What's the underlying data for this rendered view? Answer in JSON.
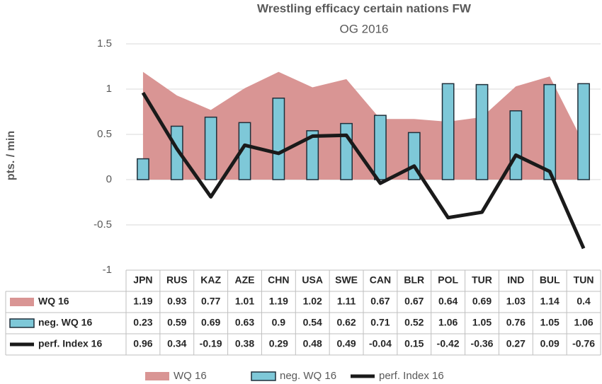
{
  "chart_data": {
    "type": "combo",
    "title": "Wrestling efficacy certain nations  FW",
    "subtitle": "OG 2016",
    "y_label": "pts. / min",
    "categories": [
      "JPN",
      "RUS",
      "KAZ",
      "AZE",
      "CHN",
      "USA",
      "SWE",
      "CAN",
      "BLR",
      "POL",
      "TUR",
      "IND",
      "BUL",
      "TUN"
    ],
    "series": [
      {
        "name": "WQ 16",
        "type": "area",
        "color": "#d99594",
        "values": [
          1.19,
          0.93,
          0.77,
          1.01,
          1.19,
          1.02,
          1.11,
          0.67,
          0.67,
          0.64,
          0.69,
          1.03,
          1.14,
          0.4
        ]
      },
      {
        "name": "neg. WQ 16",
        "type": "bar",
        "color": "#7ec8d8",
        "values": [
          0.23,
          0.59,
          0.69,
          0.63,
          0.9,
          0.54,
          0.62,
          0.71,
          0.52,
          1.06,
          1.05,
          0.76,
          1.05,
          1.06
        ]
      },
      {
        "name": "perf. Index 16",
        "type": "line",
        "color": "#1a1a1a",
        "values": [
          0.96,
          0.34,
          -0.19,
          0.38,
          0.29,
          0.48,
          0.49,
          -0.04,
          0.15,
          -0.42,
          -0.36,
          0.27,
          0.09,
          -0.76
        ]
      }
    ],
    "ylim": [
      -1,
      1.5
    ],
    "yticks": [
      1.5,
      1,
      0.5,
      0,
      -0.5,
      -1
    ],
    "grid": true,
    "data_table": true
  }
}
